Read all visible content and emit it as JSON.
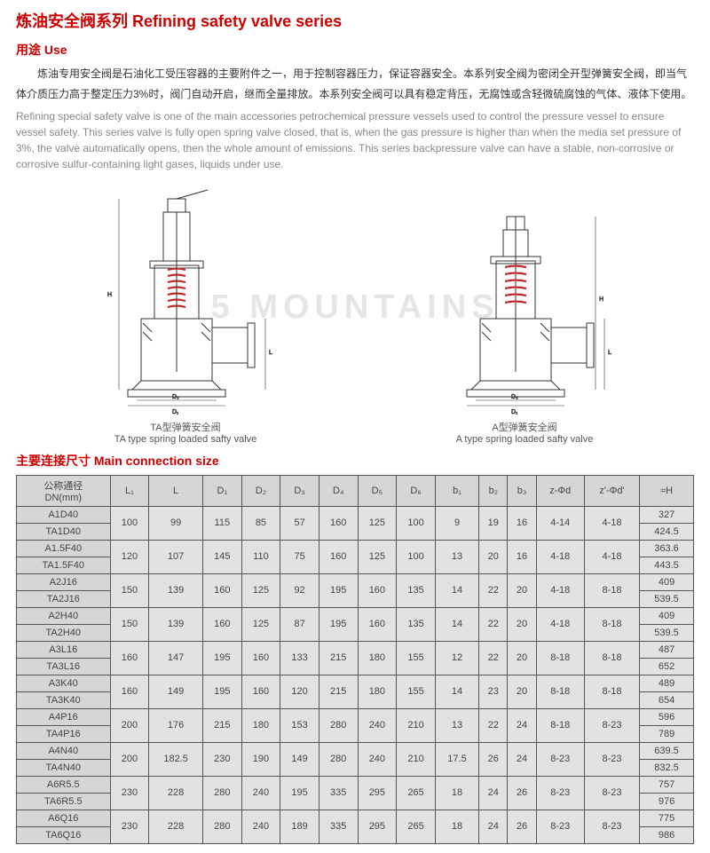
{
  "title_cn": "炼油安全阀系列",
  "title_en": "Refining safety valve series",
  "use_label_cn": "用途",
  "use_label_en": "Use",
  "desc_cn": "炼油专用安全阀是石油化工受压容器的主要附件之一，用于控制容器压力，保证容器安全。本系列安全阀为密闭全开型弹簧安全阀，即当气体介质压力高于整定压力3%时，阀门自动开启，继而全量排放。本系列安全阀可以具有稳定背压，无腐蚀或含轻微硫腐蚀的气体、液体下使用。",
  "desc_en": "Refining special safety valve is one of the main accessories petrochemical pressure vessels used to control the pressure vessel to ensure vessel safety. This series valve is fully open spring valve closed, that is, when the gas pressure is higher than when the media set pressure of 3%, the valve automatically opens, then the whole amount of emissions. This series backpressure valve can have a stable, non-corrosive or corrosive sulfur-containing light gases, liquids under use.",
  "watermark": "5 MOUNTAINS",
  "diag1_cn": "TA型弹簧安全阀",
  "diag1_en": "TA type spring loaded safty valve",
  "diag2_cn": "A型弹簧安全阀",
  "diag2_en": "A type spring loaded safty valve",
  "table_title_cn": "主要连接尺寸",
  "table_title_en": "Main connection size",
  "table": {
    "head_label_cn": "公称通径",
    "head_label_unit": "DN(mm)",
    "cols": [
      "L₁",
      "L",
      "D₁",
      "D₂",
      "D₃",
      "D₄",
      "D₅",
      "D₆",
      "b₁",
      "b₂",
      "b₃",
      "z-Φd",
      "z'-Φd'",
      "≈H"
    ],
    "groups": [
      {
        "names": [
          "A1D40",
          "TA1D40"
        ],
        "vals": [
          "100",
          "99",
          "115",
          "85",
          "57",
          "160",
          "125",
          "100",
          "9",
          "19",
          "16",
          "4-14",
          "4-18"
        ],
        "h": [
          "327",
          "424.5"
        ]
      },
      {
        "names": [
          "A1.5F40",
          "TA1.5F40"
        ],
        "vals": [
          "120",
          "107",
          "145",
          "110",
          "75",
          "160",
          "125",
          "100",
          "13",
          "20",
          "16",
          "4-18",
          "4-18"
        ],
        "h": [
          "363.6",
          "443.5"
        ]
      },
      {
        "names": [
          "A2J16",
          "TA2J16"
        ],
        "vals": [
          "150",
          "139",
          "160",
          "125",
          "92",
          "195",
          "160",
          "135",
          "14",
          "22",
          "20",
          "4-18",
          "8-18"
        ],
        "h": [
          "409",
          "539.5"
        ]
      },
      {
        "names": [
          "A2H40",
          "TA2H40"
        ],
        "vals": [
          "150",
          "139",
          "160",
          "125",
          "87",
          "195",
          "160",
          "135",
          "14",
          "22",
          "20",
          "4-18",
          "8-18"
        ],
        "h": [
          "409",
          "539.5"
        ]
      },
      {
        "names": [
          "A3L16",
          "TA3L16"
        ],
        "vals": [
          "160",
          "147",
          "195",
          "160",
          "133",
          "215",
          "180",
          "155",
          "12",
          "22",
          "20",
          "8-18",
          "8-18"
        ],
        "h": [
          "487",
          "652"
        ]
      },
      {
        "names": [
          "A3K40",
          "TA3K40"
        ],
        "vals": [
          "160",
          "149",
          "195",
          "160",
          "120",
          "215",
          "180",
          "155",
          "14",
          "23",
          "20",
          "8-18",
          "8-18"
        ],
        "h": [
          "489",
          "654"
        ]
      },
      {
        "names": [
          "A4P16",
          "TA4P16"
        ],
        "vals": [
          "200",
          "176",
          "215",
          "180",
          "153",
          "280",
          "240",
          "210",
          "13",
          "22",
          "24",
          "8-18",
          "8-23"
        ],
        "h": [
          "596",
          "789"
        ]
      },
      {
        "names": [
          "A4N40",
          "TA4N40"
        ],
        "vals": [
          "200",
          "182.5",
          "230",
          "190",
          "149",
          "280",
          "240",
          "210",
          "17.5",
          "26",
          "24",
          "8-23",
          "8-23"
        ],
        "h": [
          "639.5",
          "832.5"
        ]
      },
      {
        "names": [
          "A6R5.5",
          "TA6R5.5"
        ],
        "vals": [
          "230",
          "228",
          "280",
          "240",
          "195",
          "335",
          "295",
          "265",
          "18",
          "24",
          "26",
          "8-23",
          "8-23"
        ],
        "h": [
          "757",
          "976"
        ]
      },
      {
        "names": [
          "A6Q16",
          "TA6Q16"
        ],
        "vals": [
          "230",
          "228",
          "280",
          "240",
          "189",
          "335",
          "295",
          "265",
          "18",
          "24",
          "26",
          "8-23",
          "8-23"
        ],
        "h": [
          "775",
          "986"
        ]
      }
    ]
  },
  "style": {
    "accent": "#c00",
    "spring_color": "#c62828",
    "line_color": "#333",
    "table_border": "#555",
    "cell_bg": "#e2e2e2",
    "head_bg": "#d6d6d6"
  }
}
